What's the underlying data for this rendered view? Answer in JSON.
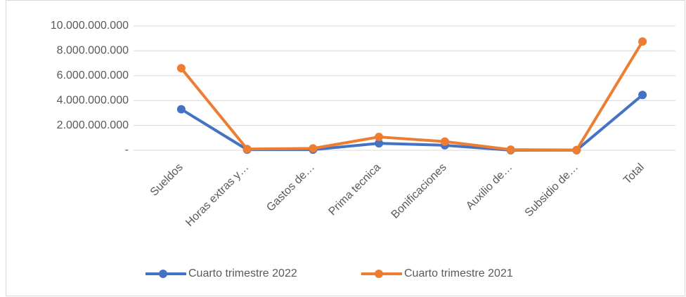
{
  "chart_data": {
    "type": "line",
    "categories": [
      "Sueldos",
      "Horas extras y…",
      "Gastos de…",
      "Prima tecnica",
      "Bonificaciones",
      "Auxilio de…",
      "Subsidio de…",
      "Total"
    ],
    "series": [
      {
        "name": "Cuarto trimestre 2022",
        "color": "#4472c4",
        "values": [
          3300000000,
          50000000,
          50000000,
          560000000,
          400000000,
          10000000,
          10000000,
          4450000000
        ]
      },
      {
        "name": "Cuarto trimestre 2021",
        "color": "#ed7d31",
        "values": [
          6600000000,
          100000000,
          150000000,
          1070000000,
          700000000,
          50000000,
          20000000,
          8750000000
        ]
      }
    ],
    "ylim": [
      0,
      10000000000
    ],
    "yticks": [
      {
        "value": 0,
        "label": "-"
      },
      {
        "value": 2000000000,
        "label": "2.000.000.000"
      },
      {
        "value": 4000000000,
        "label": "4.000.000.000"
      },
      {
        "value": 6000000000,
        "label": "6.000.000.000"
      },
      {
        "value": 8000000000,
        "label": "8.000.000.000"
      },
      {
        "value": 10000000000,
        "label": "10.000.000.000"
      }
    ],
    "grid": true,
    "legend": "bottom"
  }
}
